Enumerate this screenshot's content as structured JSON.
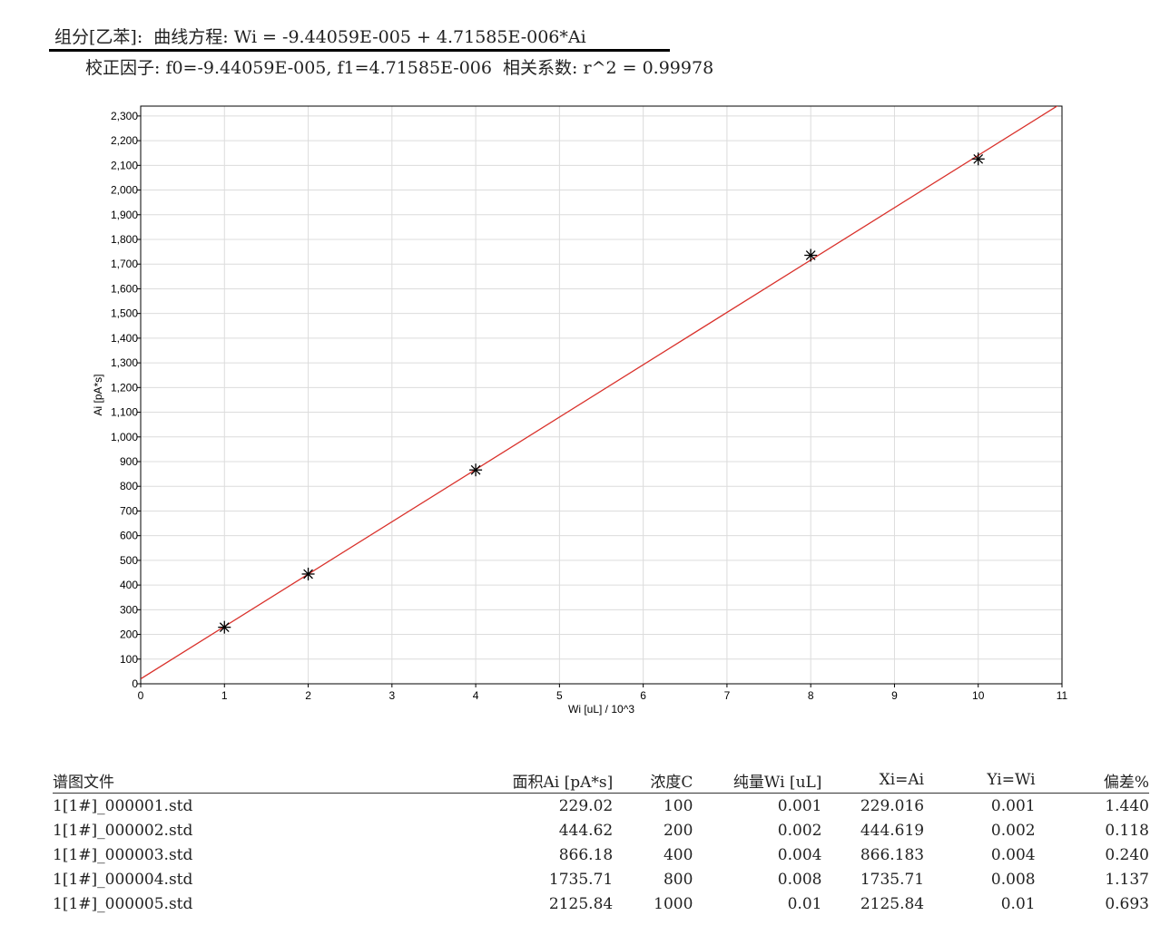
{
  "header": {
    "equation_line": "组分[乙苯]:  曲线方程: Wi = -9.44059E-005 + 4.71585E-006*Ai",
    "factors_line": "校正因子: f0=-9.44059E-005, f1=4.71585E-006  相关系数: r^2 = 0.99978"
  },
  "chart_data": {
    "type": "scatter",
    "xlabel": "Wi [uL] / 10^3",
    "ylabel": "Ai [pA*s]",
    "xlim": [
      0,
      11
    ],
    "ylim": [
      0,
      2340
    ],
    "x_ticks": [
      0,
      1,
      2,
      3,
      4,
      5,
      6,
      7,
      8,
      9,
      10,
      11
    ],
    "y_ticks": [
      0,
      100,
      200,
      300,
      400,
      500,
      600,
      700,
      800,
      900,
      1000,
      1100,
      1200,
      1300,
      1400,
      1500,
      1600,
      1700,
      1800,
      1900,
      2000,
      2100,
      2200,
      2300
    ],
    "grid": true,
    "series": [
      {
        "marker": "asterisk",
        "color": "#000000",
        "x": [
          1,
          2,
          4,
          8,
          10
        ],
        "y": [
          229.02,
          444.62,
          866.18,
          1735.71,
          2125.84
        ]
      }
    ],
    "fit_line": {
      "color": "#d9312b",
      "intercept": 20.02,
      "slope_per_x_unit": 212.05
    }
  },
  "table": {
    "headers": [
      "谱图文件",
      "面积Ai [pA*s]",
      "浓度C",
      "纯量Wi [uL]",
      "Xi=Ai",
      "Yi=Wi",
      "偏差%"
    ],
    "rows": [
      [
        "1[1#]_000001.std",
        "229.02",
        "100",
        "0.001",
        "229.016",
        "0.001",
        "1.440"
      ],
      [
        "1[1#]_000002.std",
        "444.62",
        "200",
        "0.002",
        "444.619",
        "0.002",
        "0.118"
      ],
      [
        "1[1#]_000003.std",
        "866.18",
        "400",
        "0.004",
        "866.183",
        "0.004",
        "0.240"
      ],
      [
        "1[1#]_000004.std",
        "1735.71",
        "800",
        "0.008",
        "1735.71",
        "0.008",
        "1.137"
      ],
      [
        "1[1#]_000005.std",
        "2125.84",
        "1000",
        "0.01",
        "2125.84",
        "0.01",
        "0.693"
      ]
    ]
  }
}
